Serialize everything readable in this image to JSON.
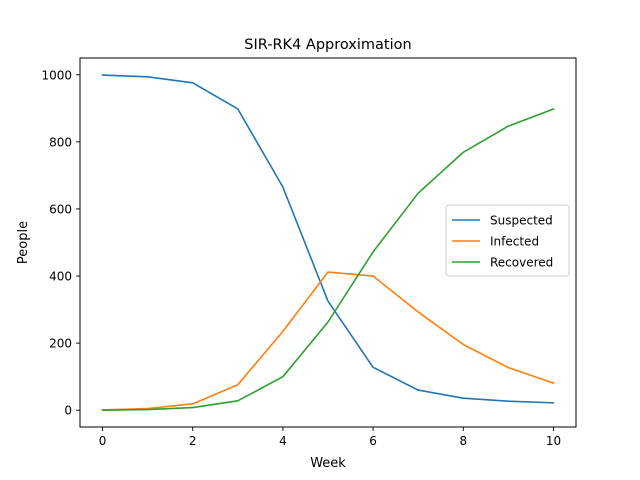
{
  "chart_data": {
    "type": "line",
    "title": "SIR-RK4 Approximation",
    "xlabel": "Week",
    "ylabel": "People",
    "x": [
      0,
      1,
      2,
      3,
      4,
      5,
      6,
      7,
      8,
      9,
      10
    ],
    "xlim": [
      -0.5,
      10.5
    ],
    "ylim": [
      -50,
      1050
    ],
    "xticks": [
      0,
      2,
      4,
      6,
      8,
      10
    ],
    "xtick_labels": [
      "0",
      "2",
      "4",
      "6",
      "8",
      "10"
    ],
    "yticks": [
      0,
      200,
      400,
      600,
      800,
      1000
    ],
    "ytick_labels": [
      "0",
      "200",
      "400",
      "600",
      "800",
      "1000"
    ],
    "grid": false,
    "legend_position": "center-right",
    "series": [
      {
        "name": "Suspected",
        "color": "#1f77b4",
        "values": [
          999,
          994,
          976,
          898,
          665,
          325,
          128,
          60,
          36,
          27,
          22
        ]
      },
      {
        "name": "Infected",
        "color": "#ff7f0e",
        "values": [
          1,
          5,
          19,
          76,
          235,
          412,
          400,
          293,
          196,
          127,
          81
        ]
      },
      {
        "name": "Recovered",
        "color": "#2ca02c",
        "values": [
          0,
          2,
          8,
          28,
          100,
          263,
          472,
          647,
          769,
          847,
          898
        ]
      }
    ]
  }
}
